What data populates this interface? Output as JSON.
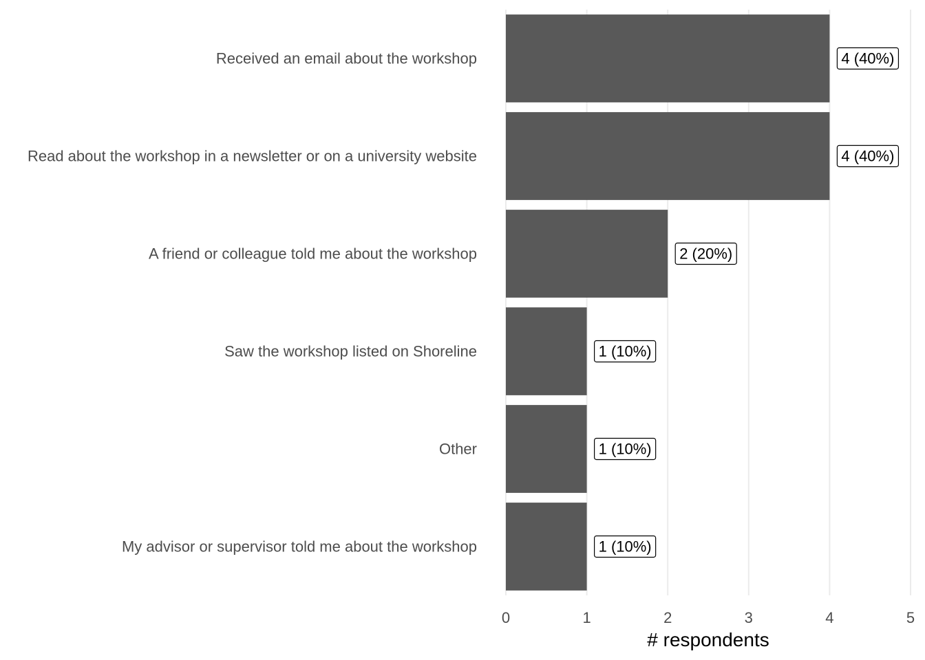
{
  "chart_data": {
    "type": "bar",
    "orientation": "horizontal",
    "categories": [
      "Received an email about the workshop",
      "Read about the workshop in a newsletter or on a university website",
      "A friend or colleague told me about the workshop",
      "Saw the workshop listed on Shoreline",
      "Other",
      "My advisor or supervisor told me about the workshop"
    ],
    "values": [
      4,
      4,
      2,
      1,
      1,
      1
    ],
    "data_labels": [
      "4 (40%)",
      "4 (40%)",
      "2 (20%)",
      "1 (10%)",
      "1 (10%)",
      "1 (10%)"
    ],
    "title": "",
    "xlabel": "# respondents",
    "ylabel": "",
    "xlim": [
      0,
      5
    ],
    "xticks": [
      "0",
      "1",
      "2",
      "3",
      "4",
      "5"
    ],
    "grid": "vertical-major",
    "bar_color": "#595959",
    "legend": "none"
  }
}
